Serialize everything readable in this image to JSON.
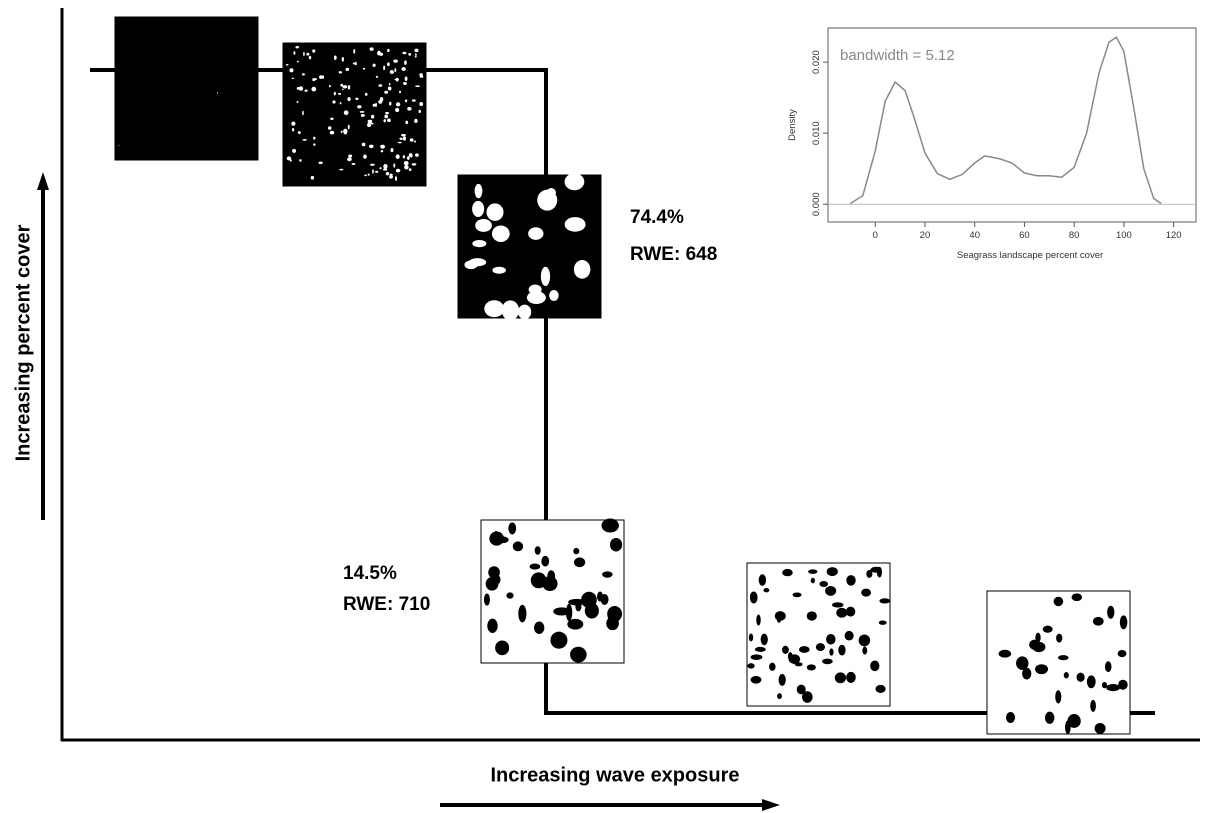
{
  "diagram": {
    "y_axis_label": "Increasing percent cover",
    "x_axis_label": "Increasing wave exposure",
    "annotations": [
      {
        "percent": "74.4%",
        "rwe": "RWE: 648"
      },
      {
        "percent": "14.5%",
        "rwe": "RWE: 710"
      }
    ]
  },
  "chart_data": {
    "type": "line",
    "annotation": "bandwidth = 5.12",
    "x_label": "Seagrass landscape percent cover",
    "y_label": "Density",
    "x": [
      -10,
      -5,
      0,
      4,
      8,
      12,
      16,
      20,
      25,
      30,
      35,
      40,
      44,
      50,
      55,
      60,
      65,
      70,
      75,
      80,
      85,
      90,
      94,
      97,
      100,
      104,
      108,
      112,
      115
    ],
    "series": [
      {
        "color": "#888888",
        "values": [
          0.0001,
          0.0012,
          0.0075,
          0.0145,
          0.0172,
          0.016,
          0.0118,
          0.0072,
          0.0043,
          0.0035,
          0.0042,
          0.0058,
          0.0068,
          0.0064,
          0.0058,
          0.0044,
          0.004,
          0.004,
          0.0038,
          0.0052,
          0.01,
          0.0185,
          0.0228,
          0.0235,
          0.0215,
          0.0135,
          0.005,
          0.0008,
          0.0001
        ]
      }
    ],
    "xlim": [
      -19,
      129
    ],
    "ylim": [
      -0.0025,
      0.0248
    ],
    "xticks": [
      0,
      20,
      40,
      60,
      80,
      100,
      120
    ],
    "yticks": [
      {
        "value": 0,
        "label": "0.000"
      },
      {
        "value": 0.01,
        "label": "0.010"
      },
      {
        "value": 0.02,
        "label": "0.020"
      }
    ]
  }
}
